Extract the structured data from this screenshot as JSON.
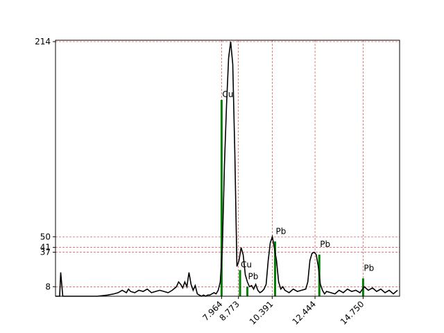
{
  "chart_data": {
    "type": "line",
    "title": "",
    "xlabel": "",
    "ylabel": "",
    "xlim": [
      0.0,
      16.5
    ],
    "ylim": [
      0,
      214
    ],
    "x_ticks": [
      7.964,
      8.773,
      10.391,
      12.444,
      14.75
    ],
    "x_tick_labels": [
      "7.964",
      "8.773",
      "10.391",
      "12.444",
      "14.750"
    ],
    "y_ticks": [
      8,
      37,
      41,
      50,
      214
    ],
    "y_tick_labels": [
      "8",
      "37",
      "41",
      "50",
      "214"
    ],
    "grid": "dashed red lines at tick positions",
    "colors": {
      "line": "#000000",
      "grid": "#d62728",
      "bars": "#008000"
    },
    "series": [
      {
        "x": [
          0,
          0.2,
          0.25,
          0.3,
          0.35,
          0.4,
          1,
          2,
          2.5,
          2.8,
          3.0,
          3.2,
          3.4,
          3.5,
          3.6,
          3.8,
          4.0,
          4.2,
          4.4,
          4.6,
          4.8,
          5.0,
          5.2,
          5.4,
          5.6,
          5.8,
          5.9,
          6.0,
          6.1,
          6.2,
          6.3,
          6.4,
          6.5,
          6.6,
          6.7,
          6.8,
          6.9,
          7.0,
          7.1,
          7.2,
          7.3,
          7.4,
          7.5,
          7.6,
          7.7,
          7.8,
          7.9,
          8.0,
          8.1,
          8.2,
          8.3,
          8.4,
          8.5,
          8.6,
          8.7,
          8.8,
          8.9,
          9.0,
          9.1,
          9.2,
          9.3,
          9.4,
          9.5,
          9.6,
          9.7,
          9.8,
          9.9,
          10.0,
          10.1,
          10.2,
          10.3,
          10.4,
          10.5,
          10.6,
          10.7,
          10.8,
          10.9,
          11.0,
          11.2,
          11.4,
          11.6,
          11.8,
          12.0,
          12.1,
          12.2,
          12.3,
          12.4,
          12.5,
          12.6,
          12.7,
          12.8,
          12.9,
          13.0,
          13.2,
          13.4,
          13.6,
          13.8,
          14.0,
          14.2,
          14.4,
          14.6,
          14.8,
          15.0,
          15.2,
          15.4,
          15.6,
          15.8,
          16.0,
          16.2,
          16.4
        ],
        "y": [
          0,
          0,
          20,
          10,
          0,
          0,
          0,
          0,
          1,
          2,
          3,
          5,
          3,
          6,
          4,
          3,
          5,
          4,
          6,
          3,
          4,
          5,
          4,
          3,
          5,
          8,
          12,
          10,
          7,
          12,
          8,
          20,
          10,
          5,
          9,
          2,
          1,
          0,
          1,
          0,
          1,
          1,
          2,
          3,
          2,
          5,
          12,
          40,
          110,
          160,
          200,
          214,
          195,
          120,
          25,
          30,
          41,
          35,
          18,
          12,
          8,
          9,
          6,
          10,
          5,
          3,
          4,
          6,
          10,
          30,
          45,
          50,
          40,
          30,
          12,
          6,
          8,
          5,
          3,
          6,
          4,
          5,
          6,
          12,
          30,
          36,
          37,
          35,
          25,
          10,
          5,
          2,
          4,
          3,
          2,
          5,
          3,
          6,
          4,
          5,
          3,
          8,
          5,
          7,
          4,
          6,
          3,
          5,
          2,
          5
        ]
      }
    ],
    "bars": [
      {
        "x": 7.964,
        "height": 165
      },
      {
        "x": 8.85,
        "height": 22
      },
      {
        "x": 9.2,
        "height": 8
      },
      {
        "x": 10.53,
        "height": 46
      },
      {
        "x": 12.65,
        "height": 35
      },
      {
        "x": 14.75,
        "height": 15
      }
    ],
    "annotations": [
      {
        "x": 7.964,
        "y": 165,
        "text": "Cu"
      },
      {
        "x": 8.85,
        "y": 22,
        "text": "Cu"
      },
      {
        "x": 9.2,
        "y": 12,
        "text": "Pb"
      },
      {
        "x": 10.53,
        "y": 50,
        "text": "Pb"
      },
      {
        "x": 12.65,
        "y": 39,
        "text": "Pb"
      },
      {
        "x": 14.75,
        "y": 19,
        "text": "Pb"
      }
    ]
  }
}
